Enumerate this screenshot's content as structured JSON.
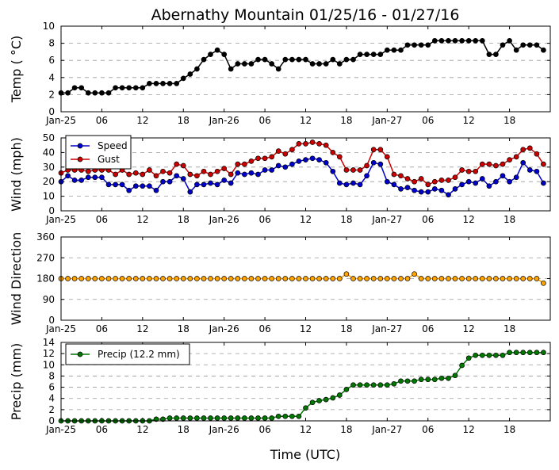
{
  "chart_data": {
    "type": "line",
    "title": "Abernathy Mountain 01/25/16 - 01/27/16",
    "xlabel": "Time (UTC)",
    "x_tick_labels": [
      "Jan-25",
      "06",
      "12",
      "18",
      "Jan-26",
      "06",
      "12",
      "18",
      "Jan-27",
      "06",
      "12",
      "18"
    ],
    "x_tick_hours": [
      0,
      6,
      12,
      18,
      24,
      30,
      36,
      42,
      48,
      54,
      60,
      66
    ],
    "x_range_hours": [
      0,
      72
    ],
    "panels": [
      {
        "name": "temperature",
        "ylabel": "Temp ( °C)",
        "ylim": [
          0,
          10
        ],
        "yticks": [
          0,
          2,
          4,
          6,
          8,
          10
        ],
        "grid": true,
        "series": [
          {
            "color": "#000000",
            "values": [
              2.2,
              2.2,
              2.8,
              2.8,
              2.2,
              2.2,
              2.2,
              2.2,
              2.8,
              2.8,
              2.8,
              2.8,
              2.8,
              3.3,
              3.3,
              3.3,
              3.3,
              3.3,
              3.9,
              4.4,
              5.0,
              6.1,
              6.7,
              7.2,
              6.7,
              5.0,
              5.6,
              5.6,
              5.6,
              6.1,
              6.1,
              5.6,
              5.0,
              6.1,
              6.1,
              6.1,
              6.1,
              5.6,
              5.6,
              5.6,
              6.1,
              5.6,
              6.1,
              6.1,
              6.7,
              6.7,
              6.7,
              6.7,
              7.2,
              7.2,
              7.2,
              7.8,
              7.8,
              7.8,
              7.8,
              8.3,
              8.3,
              8.3,
              8.3,
              8.3,
              8.3,
              8.3,
              8.3,
              6.7,
              6.7,
              7.8,
              8.3,
              7.2,
              7.8,
              7.8,
              7.8,
              7.2
            ]
          }
        ]
      },
      {
        "name": "wind",
        "ylabel": "Wind (mph)",
        "ylim": [
          0,
          50
        ],
        "yticks": [
          0,
          10,
          20,
          30,
          40,
          50
        ],
        "grid": true,
        "legend": "upper-left",
        "series": [
          {
            "name": "Speed",
            "color": "#0000cc",
            "values": [
              20,
              24,
              21,
              21,
              23,
              23,
              23,
              18,
              18,
              18,
              14,
              17,
              17,
              17,
              14,
              20,
              20,
              24,
              22,
              13,
              18,
              18,
              19,
              18,
              21,
              19,
              26,
              25,
              26,
              25,
              28,
              28,
              31,
              30,
              32,
              34,
              35,
              36,
              35,
              33,
              27,
              19,
              18,
              19,
              18,
              24,
              33,
              32,
              20,
              18,
              15,
              16,
              14,
              13,
              13,
              15,
              14,
              11,
              15,
              18,
              20,
              19,
              22,
              17,
              20,
              24,
              20,
              23,
              33,
              28,
              27,
              19
            ]
          },
          {
            "name": "Gust",
            "color": "#cc0000",
            "values": [
              26,
              28,
              28,
              28,
              27,
              28,
              28,
              28,
              25,
              28,
              25,
              26,
              25,
              28,
              24,
              27,
              26,
              32,
              31,
              25,
              24,
              27,
              25,
              27,
              29,
              25,
              32,
              32,
              34,
              36,
              36,
              37,
              41,
              39,
              42,
              46,
              46,
              47,
              46,
              45,
              40,
              37,
              28,
              28,
              28,
              31,
              42,
              42,
              37,
              25,
              24,
              22,
              20,
              22,
              18,
              20,
              21,
              21,
              23,
              28,
              27,
              27,
              32,
              32,
              31,
              32,
              35,
              37,
              42,
              43,
              39,
              32
            ]
          }
        ]
      },
      {
        "name": "direction",
        "ylabel": "Wind Direction",
        "ylim": [
          0,
          360
        ],
        "yticks": [
          0,
          90,
          180,
          270,
          360
        ],
        "grid": true,
        "series": [
          {
            "color": "#ffa500",
            "values": [
              180,
              180,
              180,
              180,
              180,
              180,
              180,
              180,
              180,
              180,
              180,
              180,
              180,
              180,
              180,
              180,
              180,
              180,
              180,
              180,
              180,
              180,
              180,
              180,
              180,
              180,
              180,
              180,
              180,
              180,
              180,
              180,
              180,
              180,
              180,
              180,
              180,
              180,
              180,
              180,
              180,
              180,
              200,
              180,
              180,
              180,
              180,
              180,
              180,
              180,
              180,
              180,
              200,
              180,
              180,
              180,
              180,
              180,
              180,
              180,
              180,
              180,
              180,
              180,
              180,
              180,
              180,
              180,
              180,
              180,
              180,
              160
            ]
          }
        ]
      },
      {
        "name": "precip",
        "ylabel": "Precip (mm)",
        "ylim": [
          0,
          14
        ],
        "yticks": [
          0,
          2,
          4,
          6,
          8,
          10,
          12,
          14
        ],
        "grid": true,
        "legend": "upper-left",
        "series": [
          {
            "name": "Precip (12.2 mm)",
            "color": "#007700",
            "values": [
              0,
              0,
              0,
              0,
              0,
              0,
              0,
              0,
              0,
              0,
              0,
              0,
              0,
              0,
              0.3,
              0.3,
              0.5,
              0.5,
              0.5,
              0.5,
              0.5,
              0.5,
              0.5,
              0.5,
              0.5,
              0.5,
              0.5,
              0.5,
              0.5,
              0.5,
              0.5,
              0.5,
              0.8,
              0.8,
              0.8,
              0.8,
              2.3,
              3.3,
              3.6,
              3.8,
              4.1,
              4.6,
              5.6,
              6.4,
              6.4,
              6.4,
              6.4,
              6.4,
              6.4,
              6.6,
              7.1,
              7.1,
              7.1,
              7.4,
              7.4,
              7.4,
              7.6,
              7.6,
              8.1,
              9.9,
              11.2,
              11.7,
              11.7,
              11.7,
              11.7,
              11.7,
              12.2,
              12.2,
              12.2,
              12.2,
              12.2,
              12.2
            ]
          }
        ]
      }
    ]
  }
}
